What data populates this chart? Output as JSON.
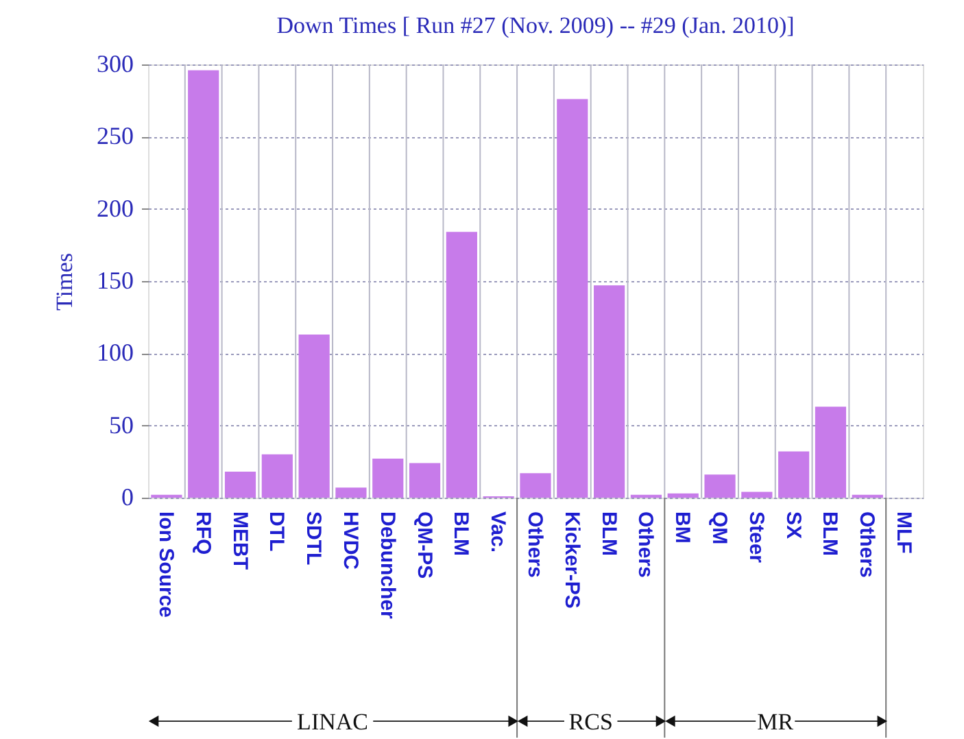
{
  "chart_data": {
    "type": "bar",
    "title": "Down Times [ Run #27 (Nov. 2009) -- #29 (Jan. 2010)]",
    "ylabel": "Times",
    "categories": [
      "Ion Source",
      "RFQ",
      "MEBT",
      "DTL",
      "SDTL",
      "HVDC",
      "Debuncher",
      "QM-PS",
      "BLM",
      "Vac.",
      "Others",
      "Kicker-PS",
      "BLM",
      "Others",
      "BM",
      "QM",
      "Steer",
      "SX",
      "BLM",
      "Others",
      "MLF"
    ],
    "values": [
      2,
      296,
      18,
      30,
      113,
      7,
      27,
      24,
      184,
      1,
      17,
      276,
      147,
      2,
      3,
      16,
      4,
      32,
      63,
      2,
      0
    ],
    "color": "#c77bea",
    "ylim": [
      0,
      300
    ],
    "yticks": [
      0,
      50,
      100,
      150,
      200,
      250,
      300
    ],
    "grid": true,
    "annotations": [
      "LINAC",
      "RCS",
      "MR"
    ]
  }
}
